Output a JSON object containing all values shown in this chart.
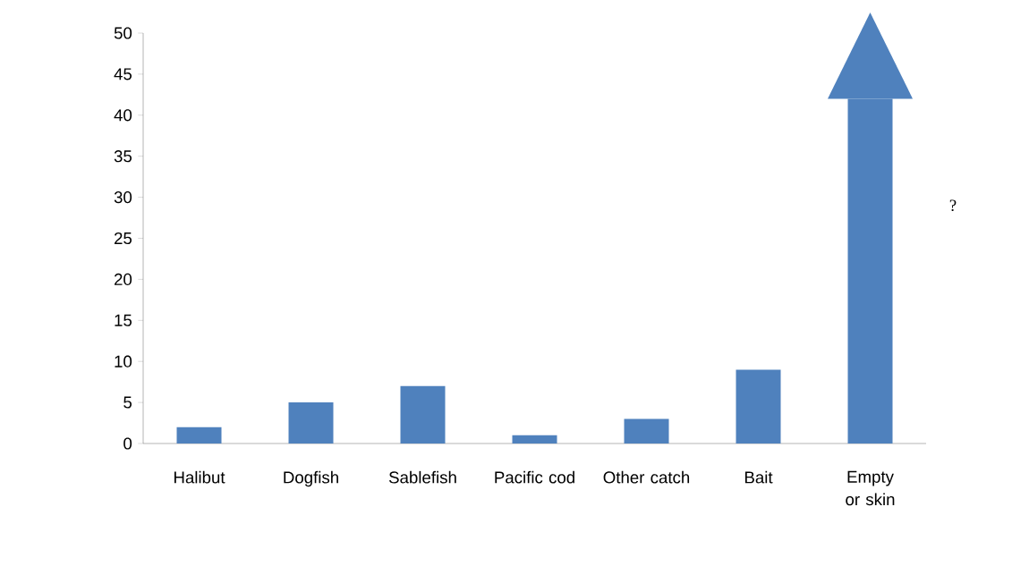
{
  "chart_data": {
    "type": "bar",
    "categories": [
      "Halibut",
      "Dogfish",
      "Sablefish",
      "Pacific cod",
      "Other catch",
      "Bait",
      "Empty or skin"
    ],
    "values": [
      2,
      5,
      7,
      1,
      3,
      9,
      42
    ],
    "color": "#4f81bd",
    "ylim": [
      0,
      50
    ],
    "yticks": [
      0,
      5,
      10,
      15,
      20,
      25,
      30,
      35,
      40,
      45,
      50
    ],
    "annotations": [
      "?"
    ]
  }
}
